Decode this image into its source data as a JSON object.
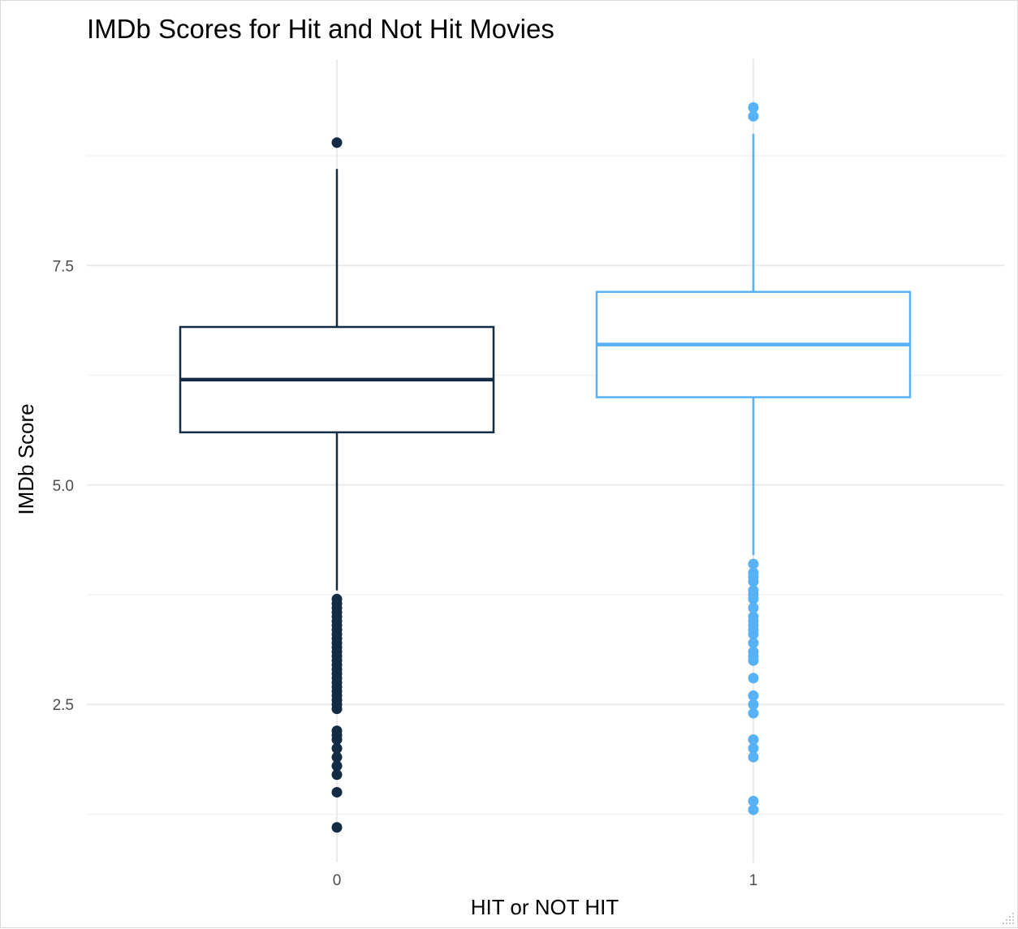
{
  "chart_data": {
    "type": "boxplot",
    "title": "IMDb Scores for Hit and Not Hit Movies",
    "xlabel": "HIT or NOT HIT",
    "ylabel": "IMDb Score",
    "categories": [
      "0",
      "1"
    ],
    "ylim": [
      0.7,
      9.85
    ],
    "y_ticks": [
      2.5,
      5.0,
      7.5
    ],
    "y_tick_labels": [
      "2.5",
      "5.0",
      "7.5"
    ],
    "grid": true,
    "legend": "none",
    "series": [
      {
        "category": "0",
        "color": "#132b43",
        "whisker_low": 3.8,
        "q1": 5.6,
        "median": 6.2,
        "q3": 6.8,
        "whisker_high": 8.6,
        "outliers": [
          8.9,
          3.7,
          3.65,
          3.6,
          3.55,
          3.5,
          3.45,
          3.4,
          3.35,
          3.3,
          3.25,
          3.2,
          3.15,
          3.1,
          3.05,
          3.0,
          2.95,
          2.9,
          2.85,
          2.8,
          2.75,
          2.7,
          2.65,
          2.6,
          2.55,
          2.5,
          2.45,
          2.2,
          2.15,
          2.1,
          2.0,
          1.9,
          1.8,
          1.7,
          1.5,
          1.1
        ]
      },
      {
        "category": "1",
        "color": "#56b1f7",
        "whisker_low": 4.2,
        "q1": 6.0,
        "median": 6.6,
        "q3": 7.2,
        "whisker_high": 9.0,
        "outliers": [
          9.3,
          9.2,
          4.1,
          4.0,
          3.95,
          3.9,
          3.8,
          3.75,
          3.7,
          3.6,
          3.5,
          3.45,
          3.4,
          3.35,
          3.3,
          3.2,
          3.1,
          3.05,
          3.0,
          2.8,
          2.6,
          2.5,
          2.4,
          2.1,
          2.0,
          1.9,
          1.4,
          1.3
        ]
      }
    ]
  }
}
